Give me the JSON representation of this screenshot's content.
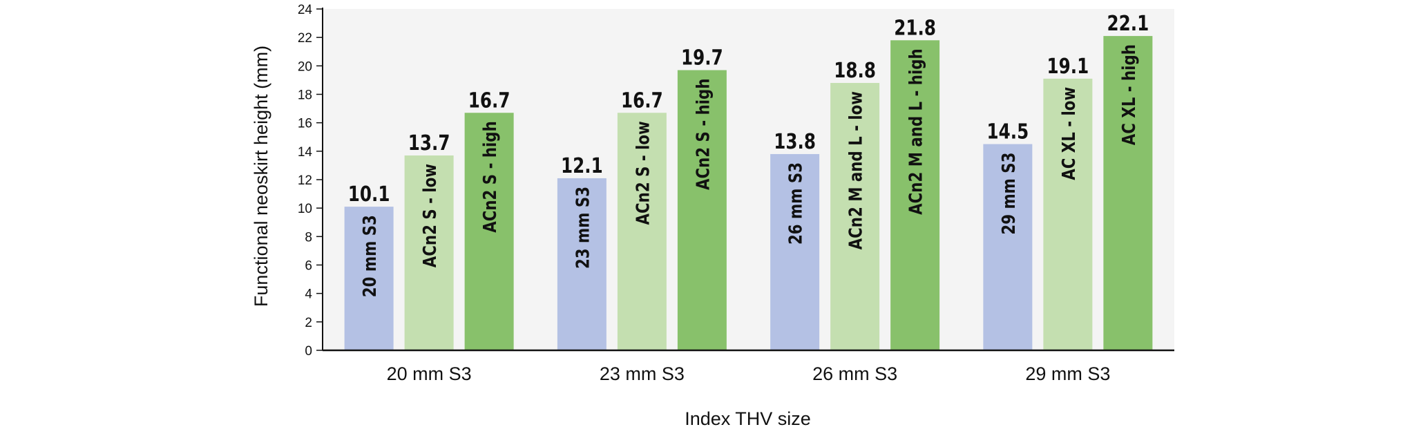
{
  "chart_data": {
    "type": "bar",
    "title": "",
    "xlabel": "Index THV size",
    "ylabel": "Functional neoskirt height (mm)",
    "ylim": [
      0,
      24
    ],
    "yticks": [
      0,
      2,
      4,
      6,
      8,
      10,
      12,
      14,
      16,
      18,
      20,
      22,
      24
    ],
    "grid": false,
    "legend": "none",
    "colors": {
      "plot_background": "#f4f4f4",
      "s3": "#b4c1e4",
      "low": "#c4dfb0",
      "high": "#88c16b",
      "axis": "#111111"
    },
    "groups": [
      {
        "category": "20 mm S3",
        "bars": [
          {
            "label": "20 mm S3",
            "value": 10.1,
            "value_text": "10.1",
            "kind": "s3"
          },
          {
            "label": "ACn2 S - low",
            "value": 13.7,
            "value_text": "13.7",
            "kind": "low"
          },
          {
            "label": "ACn2 S - high",
            "value": 16.7,
            "value_text": "16.7",
            "kind": "high"
          }
        ]
      },
      {
        "category": "23 mm S3",
        "bars": [
          {
            "label": "23 mm S3",
            "value": 12.1,
            "value_text": "12.1",
            "kind": "s3"
          },
          {
            "label": "ACn2 S - low",
            "value": 16.7,
            "value_text": "16.7",
            "kind": "low"
          },
          {
            "label": "ACn2 S - high",
            "value": 19.7,
            "value_text": "19.7",
            "kind": "high"
          }
        ]
      },
      {
        "category": "26 mm S3",
        "bars": [
          {
            "label": "26 mm S3",
            "value": 13.8,
            "value_text": "13.8",
            "kind": "s3"
          },
          {
            "label": "ACn2 M and L - low",
            "value": 18.8,
            "value_text": "18.8",
            "kind": "low"
          },
          {
            "label": "ACn2 M and L - high",
            "value": 21.8,
            "value_text": "21.8",
            "kind": "high"
          }
        ]
      },
      {
        "category": "29 mm S3",
        "bars": [
          {
            "label": "29 mm S3",
            "value": 14.5,
            "value_text": "14.5",
            "kind": "s3"
          },
          {
            "label": "AC XL - low",
            "value": 19.1,
            "value_text": "19.1",
            "kind": "low"
          },
          {
            "label": "AC XL - high",
            "value": 22.1,
            "value_text": "22.1",
            "kind": "high"
          }
        ]
      }
    ]
  }
}
